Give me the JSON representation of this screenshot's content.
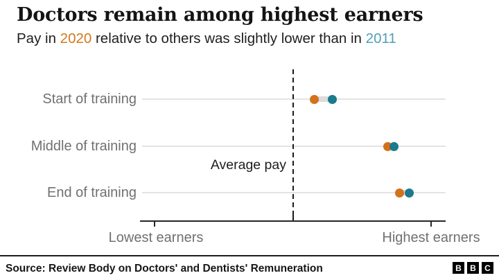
{
  "header": {
    "title": "Doctors remain among highest earners",
    "subtitle": {
      "prefix": "Pay in ",
      "year_2020": "2020",
      "middle": " relative to others was slightly lower than in ",
      "year_2011": "2011"
    }
  },
  "colors": {
    "orange_2020": "#d2721a",
    "teal_2011": "#1b7a8c",
    "subtitle_orange": "#cf7a20",
    "subtitle_teal": "#4f9fb7",
    "gridline": "#e3e3e3",
    "connector": "#dcdcdc",
    "axis": "#262626",
    "label_gray": "#707070"
  },
  "chart_data": {
    "type": "scatter",
    "subtype": "dumbbell-dot-plot",
    "title": "Doctors remain among highest earners",
    "subtitle": "Pay in 2020 relative to others was slightly lower than in 2011",
    "categories": [
      "Start of training",
      "Middle of training",
      "End of training"
    ],
    "x_unit": "relative pay position between lowest and highest earners (0-1, estimated from pixel positions; no numeric scale shown)",
    "series": [
      {
        "name": "2020",
        "color": "#d2721a",
        "values": [
          0.57,
          0.81,
          0.85
        ]
      },
      {
        "name": "2011",
        "color": "#1b7a8c",
        "values": [
          0.63,
          0.83,
          0.88
        ]
      }
    ],
    "reference_line": {
      "label": "Average pay",
      "value": 0.5,
      "style": "dashed-vertical"
    },
    "xlabel_left": "Lowest earners",
    "xlabel_right": "Highest earners",
    "xlim": [
      0,
      1
    ],
    "grid": "light horizontal line per category row",
    "legend": "encoded via colored years in subtitle"
  },
  "footer": {
    "source": "Source: Review Body on Doctors' and Dentists' Remuneration",
    "logo_blocks": [
      "B",
      "B",
      "C"
    ]
  }
}
